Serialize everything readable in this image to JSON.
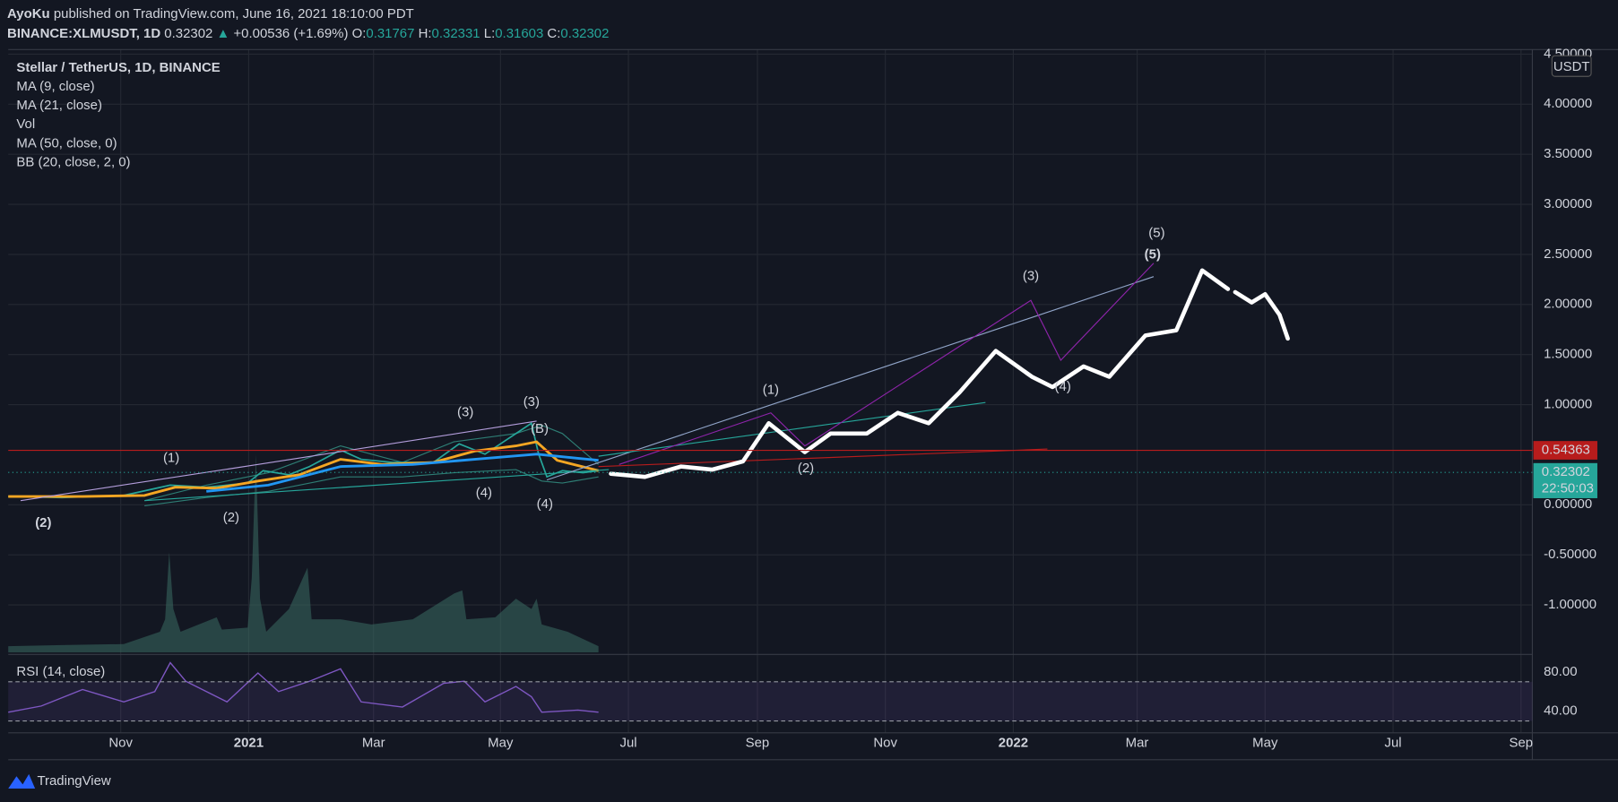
{
  "header": {
    "author": "AyoKu",
    "published": "published on TradingView.com, June 16, 2021 18:10:00 PDT"
  },
  "quote": {
    "symbol": "BINANCE:XLMUSDT, 1D",
    "last": "0.32302",
    "arrow": "▲",
    "change": "+0.00536 (+1.69%)",
    "o_label": "O:",
    "o": "0.31767",
    "h_label": "H:",
    "h": "0.32331",
    "l_label": "L:",
    "l": "0.31603",
    "c_label": "C:",
    "c": "0.32302"
  },
  "legend": [
    "Stellar / TetherUS, 1D, BINANCE",
    "MA (9, close)",
    "MA (21, close)",
    "Vol",
    "MA (50, close, 0)",
    "BB (20, close, 2, 0)"
  ],
  "price_axis": {
    "currency": "USDT",
    "ylim": [
      -1.474,
      4.546
    ],
    "ticks": [
      {
        "value": 4.5,
        "label": "4.50000"
      },
      {
        "value": 4,
        "label": "4.00000"
      },
      {
        "value": 3.5,
        "label": "3.50000"
      },
      {
        "value": 3,
        "label": "3.00000"
      },
      {
        "value": 2.5,
        "label": "2.50000"
      },
      {
        "value": 2,
        "label": "2.00000"
      },
      {
        "value": 1.5,
        "label": "1.50000"
      },
      {
        "value": 1,
        "label": "1.00000"
      },
      {
        "value": 0,
        "label": "0.00000"
      },
      {
        "value": -0.5,
        "label": "-0.50000"
      },
      {
        "value": -1,
        "label": "-1.00000"
      }
    ]
  },
  "price_lines": [
    {
      "value": 0.54363,
      "color": "#b71c1c"
    },
    {
      "value": 0.32302,
      "countdown": "22:50:03",
      "color": "#26a69a"
    }
  ],
  "rsi": {
    "title": "RSI (14, close)",
    "ylim": [
      20,
      95.8
    ],
    "bands": [
      70,
      30
    ],
    "ticks": [
      {
        "value": 80,
        "label": "80.00"
      },
      {
        "value": 40,
        "label": "40.00"
      }
    ]
  },
  "time_axis": [
    "Nov",
    "2021",
    "Mar",
    "May",
    "Jul",
    "Sep",
    "Nov",
    "2022",
    "Mar",
    "May",
    "Jul",
    "Sep"
  ],
  "wave_labels": [
    "(1)",
    "(2)",
    "(2)",
    "(3)",
    "(3)",
    "(B)",
    "(4)",
    "(4)",
    "(1)",
    "(2)",
    "(3)",
    "(4)",
    "(5)",
    "(5)"
  ],
  "footer": {
    "brand": "TradingView"
  }
}
